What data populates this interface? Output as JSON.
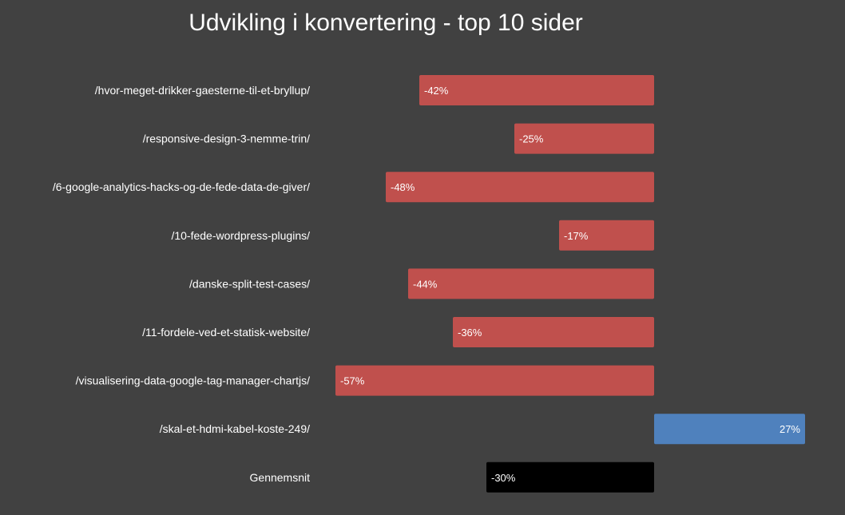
{
  "chart_data": {
    "type": "bar",
    "orientation": "horizontal",
    "title": "Udvikling i konvertering - top 10 sider",
    "xlabel": "",
    "ylabel": "",
    "xlim": [
      -57,
      27
    ],
    "grid": false,
    "legend": "none",
    "categories": [
      "/hvor-meget-drikker-gaesterne-til-et-bryllup/",
      "/responsive-design-3-nemme-trin/",
      "/6-google-analytics-hacks-og-de-fede-data-de-giver/",
      "/10-fede-wordpress-plugins/",
      "/danske-split-test-cases/",
      "/11-fordele-ved-et-statisk-website/",
      "/visualisering-data-google-tag-manager-chartjs/",
      "/skal-et-hdmi-kabel-koste-249/",
      "Gennemsnit"
    ],
    "values": [
      -42,
      -25,
      -48,
      -17,
      -44,
      -36,
      -57,
      27,
      -30
    ],
    "data_labels": [
      "-42%",
      "-25%",
      "-48%",
      "-17%",
      "-44%",
      "-36%",
      "-57%",
      "27%",
      "-30%"
    ],
    "colors": {
      "negative": "#c0504d",
      "positive": "#4f81bd",
      "average": "#000000",
      "background": "#414141",
      "text": "#ffffff"
    }
  }
}
